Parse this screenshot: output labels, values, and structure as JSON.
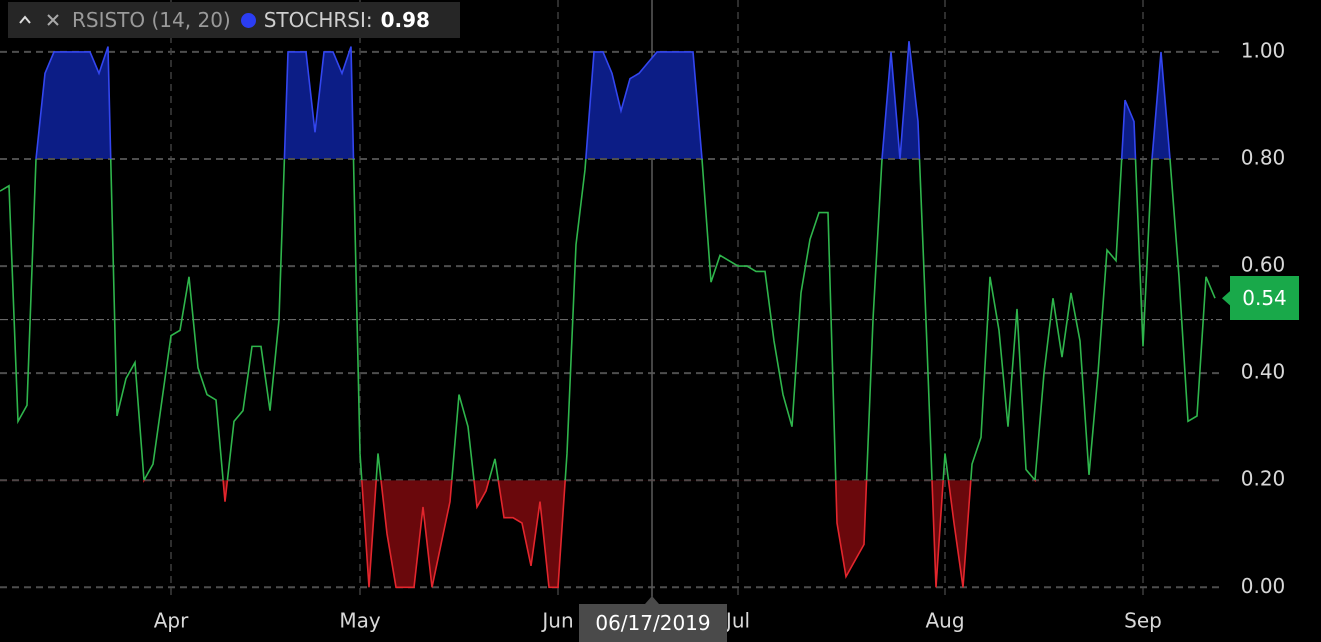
{
  "chart_data": {
    "type": "line",
    "indicator": "RSISTO (14, 20)",
    "categories": [
      null,
      null,
      null,
      null,
      null,
      null,
      null,
      null,
      null,
      null,
      null,
      null,
      null,
      null,
      null,
      null,
      null,
      null,
      null,
      "Apr",
      null,
      null,
      null,
      null,
      null,
      null,
      null,
      null,
      null,
      null,
      null,
      null,
      null,
      null,
      null,
      null,
      null,
      null,
      null,
      null,
      "May",
      null,
      null,
      null,
      null,
      null,
      null,
      null,
      null,
      null,
      null,
      null,
      null,
      null,
      null,
      null,
      null,
      null,
      null,
      null,
      null,
      null,
      "Jun",
      null,
      null,
      null,
      null,
      null,
      null,
      null,
      null,
      null,
      null,
      null,
      null,
      null,
      null,
      null,
      null,
      null,
      null,
      null,
      "Jul",
      null,
      null,
      null,
      null,
      null,
      null,
      null,
      null,
      null,
      null,
      null,
      null,
      null,
      null,
      null,
      null,
      null,
      null,
      null,
      null,
      null,
      null,
      "Aug",
      null,
      null,
      null,
      null,
      null,
      null,
      null,
      null,
      null,
      null,
      null,
      null,
      null,
      null,
      null,
      null,
      null,
      null,
      null,
      null,
      null,
      "Sep",
      null,
      null,
      null,
      null,
      null,
      null,
      null,
      null
    ],
    "series": [
      {
        "name": "STOCHRSI:",
        "color": "#2fb54c",
        "marker_color": "#2b3df2",
        "values": [
          0.74,
          0.75,
          0.31,
          0.34,
          0.8,
          0.96,
          1.0,
          1.0,
          1.0,
          1.0,
          1.0,
          0.96,
          1.01,
          0.32,
          0.39,
          0.42,
          0.2,
          0.23,
          0.35,
          0.47,
          0.48,
          0.58,
          0.41,
          0.36,
          0.35,
          0.16,
          0.31,
          0.33,
          0.45,
          0.45,
          0.33,
          0.5,
          1.0,
          1.0,
          1.0,
          0.85,
          1.0,
          1.0,
          0.96,
          1.01,
          0.25,
          0.0,
          0.25,
          0.1,
          0.0,
          0.0,
          0.0,
          0.15,
          0.0,
          0.08,
          0.16,
          0.36,
          0.3,
          0.15,
          0.18,
          0.24,
          0.13,
          0.13,
          0.12,
          0.04,
          0.16,
          0.0,
          0.0,
          0.25,
          0.64,
          0.78,
          1.0,
          1.0,
          0.96,
          0.89,
          0.95,
          0.96,
          0.98,
          1.0,
          1.0,
          1.0,
          1.0,
          1.0,
          0.8,
          0.57,
          0.62,
          0.61,
          0.6,
          0.6,
          0.59,
          0.59,
          0.46,
          0.36,
          0.3,
          0.55,
          0.65,
          0.7,
          0.7,
          0.12,
          0.02,
          0.05,
          0.08,
          0.5,
          0.8,
          1.0,
          0.8,
          1.02,
          0.87,
          0.45,
          0.0,
          0.25,
          0.12,
          0.0,
          0.23,
          0.28,
          0.58,
          0.48,
          0.3,
          0.52,
          0.22,
          0.2,
          0.4,
          0.54,
          0.43,
          0.55,
          0.46,
          0.21,
          0.4,
          0.63,
          0.61,
          0.91,
          0.87,
          0.45,
          0.8,
          1.0,
          0.8,
          0.58,
          0.31,
          0.32,
          0.58,
          0.54
        ]
      }
    ],
    "overbought": 0.8,
    "overbought_line_color": "#3346f0",
    "overbought_fill": "#0c1d86",
    "oversold": 0.2,
    "oversold_line_color": "#e3262d",
    "oversold_fill": "#6a080c",
    "midline": 0.5,
    "crosshair": {
      "date": "06/17/2019",
      "value": 0.98
    },
    "ylim": [
      -0.02,
      1.097
    ],
    "yticks": [
      {
        "value": 0,
        "label": "0.00"
      },
      {
        "value": 0.2,
        "label": "0.20"
      },
      {
        "value": 0.4,
        "label": "0.40"
      },
      {
        "value": 0.6,
        "label": "0.60"
      },
      {
        "value": 0.8,
        "label": "0.80"
      },
      {
        "value": 1,
        "label": "1.00"
      }
    ],
    "grid": true
  }
}
